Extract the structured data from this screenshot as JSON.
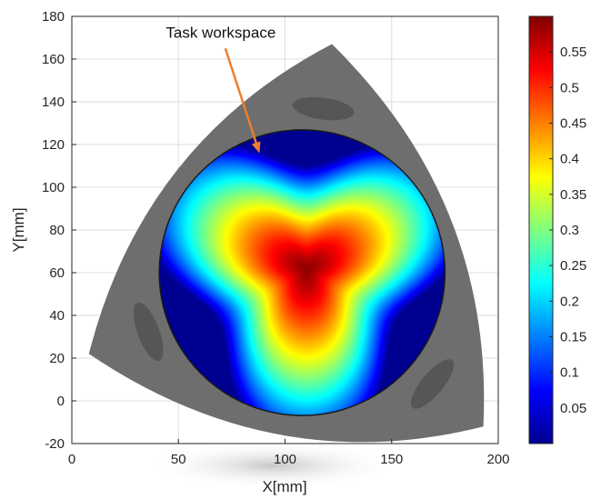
{
  "chart_data": {
    "type": "heatmap",
    "xlabel": "X[mm]",
    "ylabel": "Y[mm]",
    "xlim": [
      0,
      200
    ],
    "ylim": [
      -20,
      180
    ],
    "xticks": [
      0,
      50,
      100,
      150,
      200
    ],
    "yticks": [
      -20,
      0,
      20,
      40,
      60,
      80,
      100,
      120,
      140,
      160,
      180
    ],
    "grid": true,
    "colormap": "jet",
    "colorbar": {
      "range": [
        0,
        0.6
      ],
      "ticks": [
        0.05,
        0.1,
        0.15,
        0.2,
        0.25,
        0.3,
        0.35,
        0.4,
        0.45,
        0.5,
        0.55
      ]
    },
    "outer_region": {
      "shape": "curved triangle (Reuleaux-like)",
      "vertices": [
        [
          8,
          22
        ],
        [
          122,
          167
        ],
        [
          193,
          -12
        ]
      ],
      "fill": "#6e6e6e"
    },
    "task_workspace": {
      "shape": "circle",
      "center": [
        108,
        60
      ],
      "radius": 67,
      "peak_value": 0.59,
      "peak_location": [
        110,
        62
      ]
    },
    "annotation": {
      "text": "Task workspace",
      "arrow_color": "#ed7d31",
      "arrow_from": [
        72,
        165
      ],
      "arrow_to": [
        88,
        116
      ]
    }
  }
}
